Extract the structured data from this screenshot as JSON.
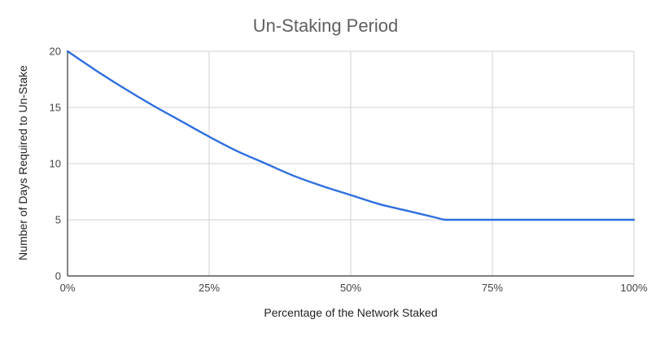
{
  "chart_data": {
    "type": "line",
    "title": "Un-Staking Period",
    "xlabel": "Percentage of the Network Staked",
    "ylabel": "Number of Days Required to Un-Stake",
    "xlim": [
      0,
      100
    ],
    "ylim": [
      0,
      20
    ],
    "x_ticks": [
      0,
      25,
      50,
      75,
      100
    ],
    "x_tick_labels": [
      "0%",
      "25%",
      "50%",
      "75%",
      "100%"
    ],
    "y_ticks": [
      0,
      5,
      10,
      15,
      20
    ],
    "y_tick_labels": [
      "0",
      "5",
      "10",
      "15",
      "20"
    ],
    "grid": true,
    "legend": "none",
    "series": [
      {
        "color": "#2f6fdf",
        "x": [
          0,
          5,
          10,
          15,
          20,
          25,
          30,
          35,
          40,
          45,
          50,
          55,
          60,
          65,
          66.7,
          70,
          75,
          80,
          85,
          90,
          95,
          100
        ],
        "y": [
          20,
          18.3,
          16.7,
          15.2,
          13.8,
          12.4,
          11.1,
          10.0,
          8.9,
          8.0,
          7.2,
          6.4,
          5.8,
          5.2,
          5.0,
          5.0,
          5.0,
          5.0,
          5.0,
          5.0,
          5.0,
          5.0
        ]
      }
    ]
  }
}
